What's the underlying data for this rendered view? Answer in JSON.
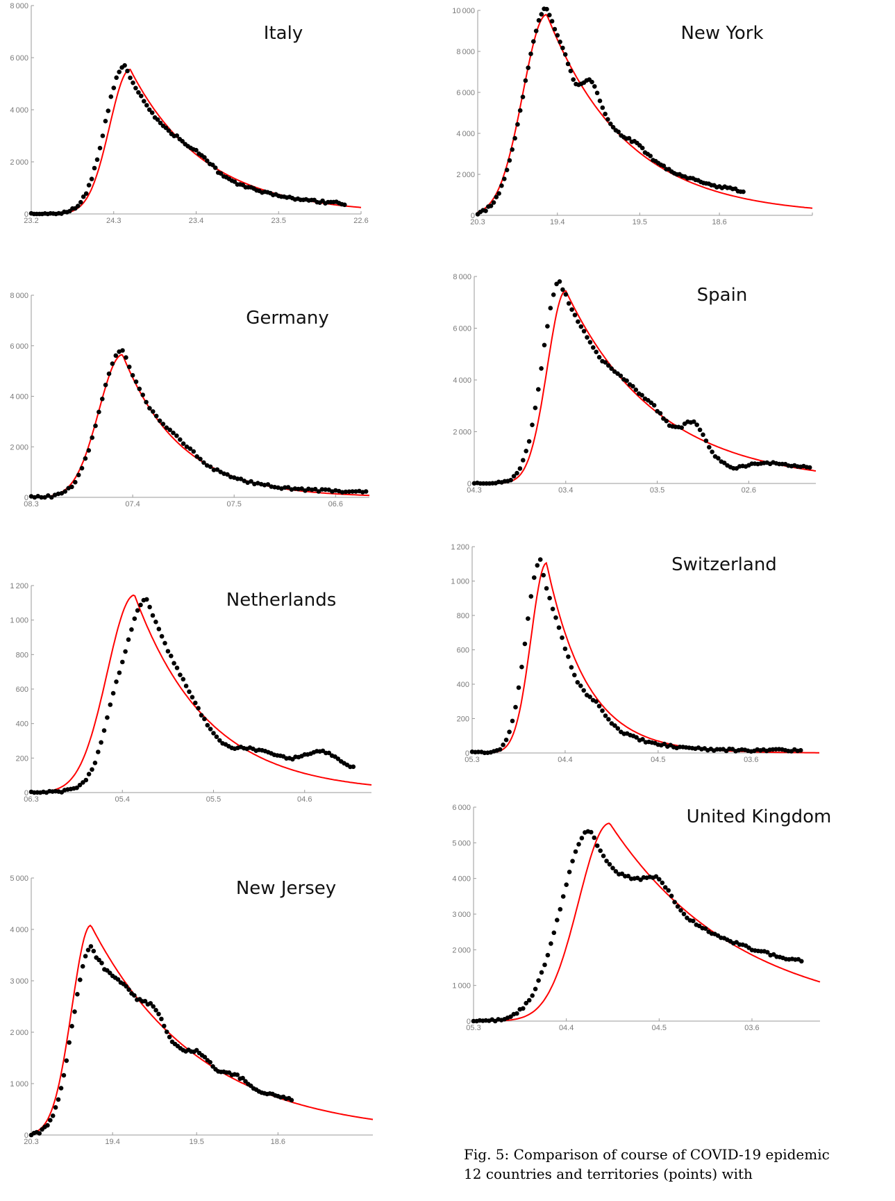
{
  "figure": {
    "caption_line1": "Fig. 5: Comparison of course of COVID-19 epidemic",
    "caption_line2": "12 countries and territories (points) with"
  },
  "style": {
    "points_color": "#000000",
    "fit_color": "#ff0000",
    "axis_color": "#9a9a9a",
    "tick_label_color": "#7a7a7a"
  },
  "chart_data": [
    {
      "id": "italy",
      "type": "scatter",
      "title": "Italy",
      "fit_line": true,
      "ylim": [
        0,
        8000
      ],
      "yticks": [
        0,
        2000,
        4000,
        6000,
        8000
      ],
      "xlim": [
        0,
        120
      ],
      "xticks": [
        0,
        30,
        60,
        90,
        120
      ],
      "xtick_labels": [
        "23.2",
        "24.3",
        "23.4",
        "23.5",
        "22.6"
      ],
      "n_points": 115,
      "peak_x": 34,
      "peak_y": 5700,
      "points_last": 310,
      "fit_peak_x": 36,
      "fit_peak_y": 5550,
      "fit_rise": 7.5,
      "fit_decay": 27,
      "wiggles": [
        {
          "x": 55,
          "a": 300,
          "w": 5
        },
        {
          "x": 63,
          "a": 250,
          "w": 4
        }
      ]
    },
    {
      "id": "new-york",
      "type": "scatter",
      "title": "New York",
      "fit_line": true,
      "ylim": [
        0,
        10000
      ],
      "yticks": [
        0,
        2000,
        4000,
        6000,
        8000,
        10000
      ],
      "xlim": [
        0,
        126
      ],
      "xticks": [
        0,
        30,
        61,
        91,
        126
      ],
      "xtick_labels": [
        "20.3",
        "19.4",
        "19.5",
        "18.6",
        ""
      ],
      "n_points": 101,
      "peak_x": 26,
      "peak_y": 10100,
      "points_last": 900,
      "fit_peak_x": 26,
      "fit_peak_y": 9800,
      "fit_rise": 9,
      "fit_decay": 30,
      "wiggles": [
        {
          "x": 37,
          "a": -600,
          "w": 2
        },
        {
          "x": 43,
          "a": 900,
          "w": 3
        },
        {
          "x": 60,
          "a": 300,
          "w": 4
        }
      ]
    },
    {
      "id": "germany",
      "type": "scatter",
      "title": "Germany",
      "fit_line": true,
      "ylim": [
        0,
        8000
      ],
      "yticks": [
        0,
        2000,
        4000,
        6000,
        8000
      ],
      "xlim": [
        0,
        100
      ],
      "xticks": [
        0,
        30,
        60,
        90
      ],
      "xtick_labels": [
        "08.3",
        "07.4",
        "07.5",
        "06.6"
      ],
      "n_points": 100,
      "peak_x": 27,
      "peak_y": 5850,
      "points_last": 280,
      "fit_peak_x": 27,
      "fit_peak_y": 5650,
      "fit_rise": 7,
      "fit_decay": 17,
      "wiggles": [
        {
          "x": 44,
          "a": 300,
          "w": 5
        }
      ]
    },
    {
      "id": "spain",
      "type": "scatter",
      "title": "Spain",
      "fit_line": true,
      "ylim": [
        0,
        8000
      ],
      "yticks": [
        0,
        2000,
        4000,
        6000,
        8000
      ],
      "xlim": [
        0,
        112
      ],
      "xticks": [
        0,
        30,
        60,
        90
      ],
      "xtick_labels": [
        "04.3",
        "03.4",
        "03.5",
        "02.6"
      ],
      "n_points": 111,
      "peak_x": 28,
      "peak_y": 7800,
      "points_last": 380,
      "fit_peak_x": 30,
      "fit_peak_y": 7450,
      "fit_rise": 6,
      "fit_decay": 30,
      "wiggles": [
        {
          "x": 50,
          "a": 400,
          "w": 4
        },
        {
          "x": 58,
          "a": 400,
          "w": 3
        },
        {
          "x": 72,
          "a": 700,
          "w": 3
        },
        {
          "x": 84,
          "a": -500,
          "w": 5
        }
      ]
    },
    {
      "id": "netherlands",
      "type": "scatter",
      "title": "Netherlands",
      "fit_line": true,
      "ylim": [
        0,
        1200
      ],
      "yticks": [
        0,
        200,
        400,
        600,
        800,
        1000,
        1200
      ],
      "xlim": [
        0,
        112
      ],
      "xticks": [
        0,
        30,
        60,
        90
      ],
      "xtick_labels": [
        "06.3",
        "05.4",
        "05.5",
        "04.6"
      ],
      "n_points": 107,
      "peak_x": 38,
      "peak_y": 1120,
      "points_last": 140,
      "fit_peak_x": 34,
      "fit_peak_y": 1145,
      "fit_rise": 9,
      "fit_decay": 24,
      "wiggles": [
        {
          "x": 26,
          "a": 90,
          "w": 3
        },
        {
          "x": 62,
          "a": -110,
          "w": 6
        },
        {
          "x": 96,
          "a": 90,
          "w": 5
        }
      ]
    },
    {
      "id": "switzerland",
      "type": "scatter",
      "title": "Switzerland",
      "fit_line": true,
      "ylim": [
        0,
        1200
      ],
      "yticks": [
        0,
        200,
        400,
        600,
        800,
        1000,
        1200
      ],
      "xlim": [
        0,
        112
      ],
      "xticks": [
        0,
        30,
        60,
        90
      ],
      "xtick_labels": [
        "05.3",
        "04.4",
        "04.5",
        "03.6"
      ],
      "n_points": 107,
      "peak_x": 22,
      "peak_y": 1110,
      "points_last": 25,
      "fit_peak_x": 24,
      "fit_peak_y": 1105,
      "fit_rise": 5,
      "fit_decay": 13,
      "wiggles": [
        {
          "x": 28,
          "a": 60,
          "w": 3
        },
        {
          "x": 40,
          "a": 50,
          "w": 3
        }
      ]
    },
    {
      "id": "new-jersey",
      "type": "scatter",
      "title": "New Jersey",
      "fit_line": true,
      "ylim": [
        0,
        5000
      ],
      "yticks": [
        0,
        1000,
        2000,
        3000,
        4000,
        5000
      ],
      "xlim": [
        0,
        126
      ],
      "xticks": [
        0,
        30,
        61,
        91
      ],
      "xtick_labels": [
        "20.3",
        "19.4",
        "19.5",
        "18.6"
      ],
      "n_points": 97,
      "peak_x": 22,
      "peak_y": 3650,
      "points_last": 400,
      "fit_peak_x": 22,
      "fit_peak_y": 4080,
      "fit_rise": 7,
      "fit_decay": 40,
      "wiggles": [
        {
          "x": 35,
          "a": 250,
          "w": 4
        },
        {
          "x": 45,
          "a": 450,
          "w": 4
        },
        {
          "x": 62,
          "a": 250,
          "w": 4
        },
        {
          "x": 75,
          "a": 150,
          "w": 4
        }
      ]
    },
    {
      "id": "united-kingdom",
      "type": "scatter",
      "title": "United Kingdom",
      "fit_line": true,
      "ylim": [
        0,
        6000
      ],
      "yticks": [
        0,
        1000,
        2000,
        3000,
        4000,
        5000,
        6000
      ],
      "xlim": [
        0,
        112
      ],
      "xticks": [
        0,
        30,
        60,
        90
      ],
      "xtick_labels": [
        "05.3",
        "04.4",
        "04.5",
        "03.6"
      ],
      "n_points": 107,
      "peak_x": 38,
      "peak_y": 5500,
      "points_last": 1300,
      "fit_peak_x": 44,
      "fit_peak_y": 5550,
      "fit_rise": 10,
      "fit_decay": 42,
      "wiggles": [
        {
          "x": 44,
          "a": -450,
          "w": 5
        },
        {
          "x": 60,
          "a": 550,
          "w": 4
        }
      ]
    }
  ]
}
